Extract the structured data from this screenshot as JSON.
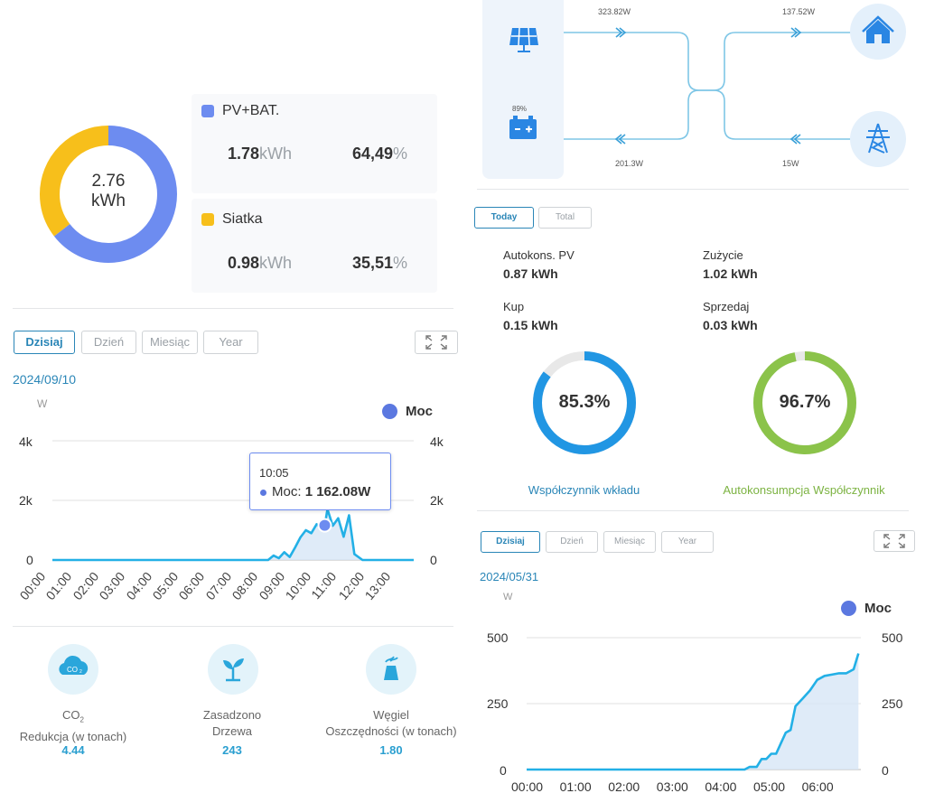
{
  "left": {
    "donut": {
      "center_value": "2.76",
      "center_unit": "kWh",
      "pv_color": "#6d8cf0",
      "grid_color": "#f7bf1b",
      "pv_percent": 64.49,
      "grid_percent": 35.51
    },
    "cards": [
      {
        "label": "PV+BAT.",
        "energy_value": "1.78",
        "energy_unit": "kWh",
        "percent_value": "64,49",
        "percent_unit": "%",
        "color": "#6d8cf0"
      },
      {
        "label": "Siatka",
        "energy_value": "0.98",
        "energy_unit": "kWh",
        "percent_value": "35,51",
        "percent_unit": "%",
        "color": "#f7bf1b"
      }
    ],
    "tabs": [
      "Dzisiaj",
      "Dzień",
      "Miesiąc",
      "Year"
    ],
    "date": "2024/09/10",
    "unit_label": "W",
    "legend": "Moc",
    "y_ticks": [
      "4k",
      "2k",
      "0"
    ],
    "x_ticks": [
      "00:00",
      "01:00",
      "02:00",
      "03:00",
      "04:00",
      "05:00",
      "06:00",
      "07:00",
      "08:00",
      "09:00",
      "10:00",
      "11:00",
      "12:00",
      "13:00"
    ],
    "tooltip": {
      "time": "10:05",
      "label": "Moc:",
      "value": "1 162.08W"
    },
    "eco": [
      {
        "icon": "co2-cloud-icon",
        "title_main": "CO",
        "title_sub": "2",
        "subtitle": "Redukcja (w tonach)",
        "value": "4.44"
      },
      {
        "icon": "plant-sprout-icon",
        "title_main": "Zasadzono",
        "subtitle": "Drzewa",
        "value": "243"
      },
      {
        "icon": "coal-factory-icon",
        "title_main": "Węgiel",
        "subtitle": "Oszczędności (w tonach)",
        "value": "1.80"
      }
    ]
  },
  "chart_data": [
    {
      "type": "area",
      "title": "2024/09/10",
      "ylabel": "W",
      "series": [
        {
          "name": "Moc",
          "values": [
            0,
            0,
            0,
            0,
            0,
            0,
            0,
            0,
            50,
            400,
            1200,
            900,
            0,
            0
          ]
        }
      ],
      "categories": [
        "00:00",
        "01:00",
        "02:00",
        "03:00",
        "04:00",
        "05:00",
        "06:00",
        "07:00",
        "08:00",
        "09:00",
        "10:00",
        "11:00",
        "12:00",
        "13:00"
      ],
      "x": [
        0,
        0.5,
        1,
        1.5,
        2,
        2.5,
        3,
        3.5,
        4,
        4.5,
        5,
        5.5,
        6,
        6.5,
        7,
        7.5,
        8,
        8.2,
        8.4,
        8.6,
        8.8,
        9,
        9.2,
        9.4,
        9.6,
        9.8,
        10,
        10.1,
        10.2,
        10.4,
        10.6,
        10.8,
        11,
        11.2,
        11.5,
        12,
        12.5,
        13,
        13.5
      ],
      "y": [
        0,
        0,
        0,
        0,
        0,
        0,
        0,
        0,
        0,
        0,
        0,
        0,
        0,
        0,
        0,
        0,
        0,
        150,
        60,
        260,
        100,
        420,
        760,
        1000,
        900,
        1200,
        1060,
        1162,
        1700,
        1150,
        1400,
        780,
        1500,
        200,
        0,
        0,
        0,
        0,
        0
      ],
      "ylim": [
        0,
        4000
      ],
      "y_ticks": [
        0,
        2000,
        4000
      ]
    },
    {
      "type": "area",
      "title": "2024/05/31",
      "ylabel": "W",
      "series": [
        {
          "name": "Moc",
          "values": [
            0,
            0,
            0,
            0,
            0,
            40,
            380
          ]
        }
      ],
      "categories": [
        "00:00",
        "01:00",
        "02:00",
        "03:00",
        "04:00",
        "05:00",
        "06:00"
      ],
      "x": [
        0,
        0.5,
        1,
        1.5,
        2,
        2.5,
        3,
        3.5,
        4,
        4.3,
        4.5,
        4.6,
        4.75,
        4.85,
        4.95,
        5.05,
        5.15,
        5.25,
        5.35,
        5.45,
        5.55,
        5.7,
        5.85,
        6.0,
        6.15,
        6.3,
        6.45,
        6.6,
        6.75,
        6.85
      ],
      "y": [
        0,
        0,
        0,
        0,
        0,
        0,
        0,
        0,
        0,
        0,
        0,
        10,
        10,
        40,
        40,
        60,
        60,
        100,
        140,
        150,
        240,
        270,
        300,
        340,
        355,
        360,
        365,
        365,
        380,
        440
      ],
      "ylim": [
        0,
        500
      ],
      "y_ticks": [
        0,
        250,
        500
      ]
    }
  ],
  "right": {
    "flow": {
      "pv_power": "323.82W",
      "battery_power": "201.3W",
      "battery_percent": "89%",
      "home_power": "137.52W",
      "grid_power": "15W"
    },
    "tabs": [
      "Today",
      "Total"
    ],
    "stats": [
      {
        "label": "Autokons. PV",
        "value": "0.87 kWh"
      },
      {
        "label": "Zużycie",
        "value": "1.02 kWh"
      },
      {
        "label": "Kup",
        "value": "0.15 kWh"
      },
      {
        "label": "Sprzedaj",
        "value": "0.03 kWh"
      }
    ],
    "ratios": [
      {
        "label": "Współczynnik wkładu",
        "value": "85.3%",
        "fraction": 0.853,
        "color": "#2196e3"
      },
      {
        "label": "Autokonsumpcja Współczynnik",
        "value": "96.7%",
        "fraction": 0.967,
        "color": "#8bc34a"
      }
    ],
    "tabs2": [
      "Dzisiaj",
      "Dzień",
      "Miesiąc",
      "Year"
    ],
    "date": "2024/05/31",
    "unit_label": "W",
    "legend": "Moc",
    "y_ticks": [
      "500",
      "250",
      "0"
    ],
    "x_ticks": [
      "00:00",
      "01:00",
      "02:00",
      "03:00",
      "04:00",
      "05:00",
      "06:00"
    ]
  }
}
